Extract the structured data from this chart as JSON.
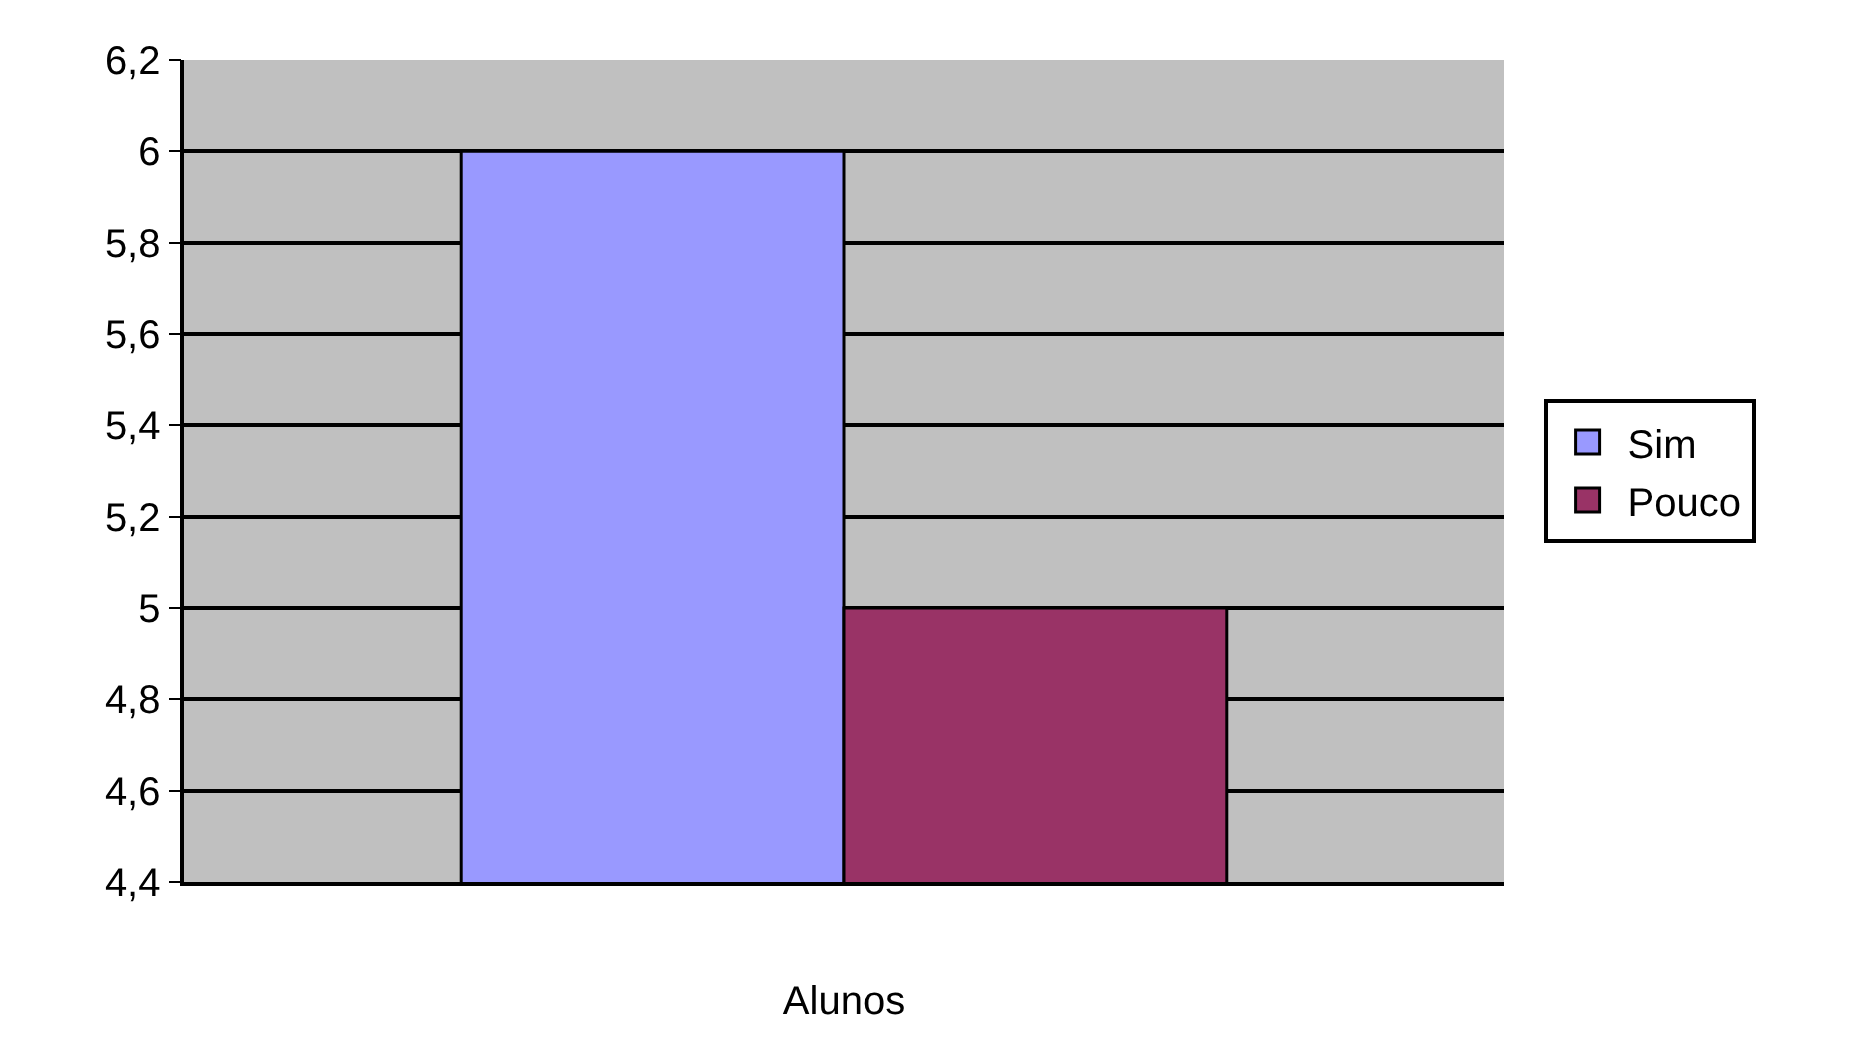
{
  "chart_data": {
    "type": "bar",
    "categories": [
      "Alunos"
    ],
    "series": [
      {
        "name": "Sim",
        "color": "#9999ff",
        "values": [
          6
        ]
      },
      {
        "name": "Pouco",
        "color": "#993366",
        "values": [
          5
        ]
      }
    ],
    "ylim": [
      4.4,
      6.2
    ],
    "yticks": [
      {
        "value": 4.4,
        "label": "4,4"
      },
      {
        "value": 4.6,
        "label": "4,6"
      },
      {
        "value": 4.8,
        "label": "4,8"
      },
      {
        "value": 5,
        "label": "5"
      },
      {
        "value": 5.2,
        "label": "5,2"
      },
      {
        "value": 5.4,
        "label": "5,4"
      },
      {
        "value": 5.6,
        "label": "5,6"
      },
      {
        "value": 5.8,
        "label": "5,8"
      },
      {
        "value": 6,
        "label": "6"
      },
      {
        "value": 6.2,
        "label": "6,2"
      }
    ],
    "grid": "y",
    "legend": "right"
  }
}
